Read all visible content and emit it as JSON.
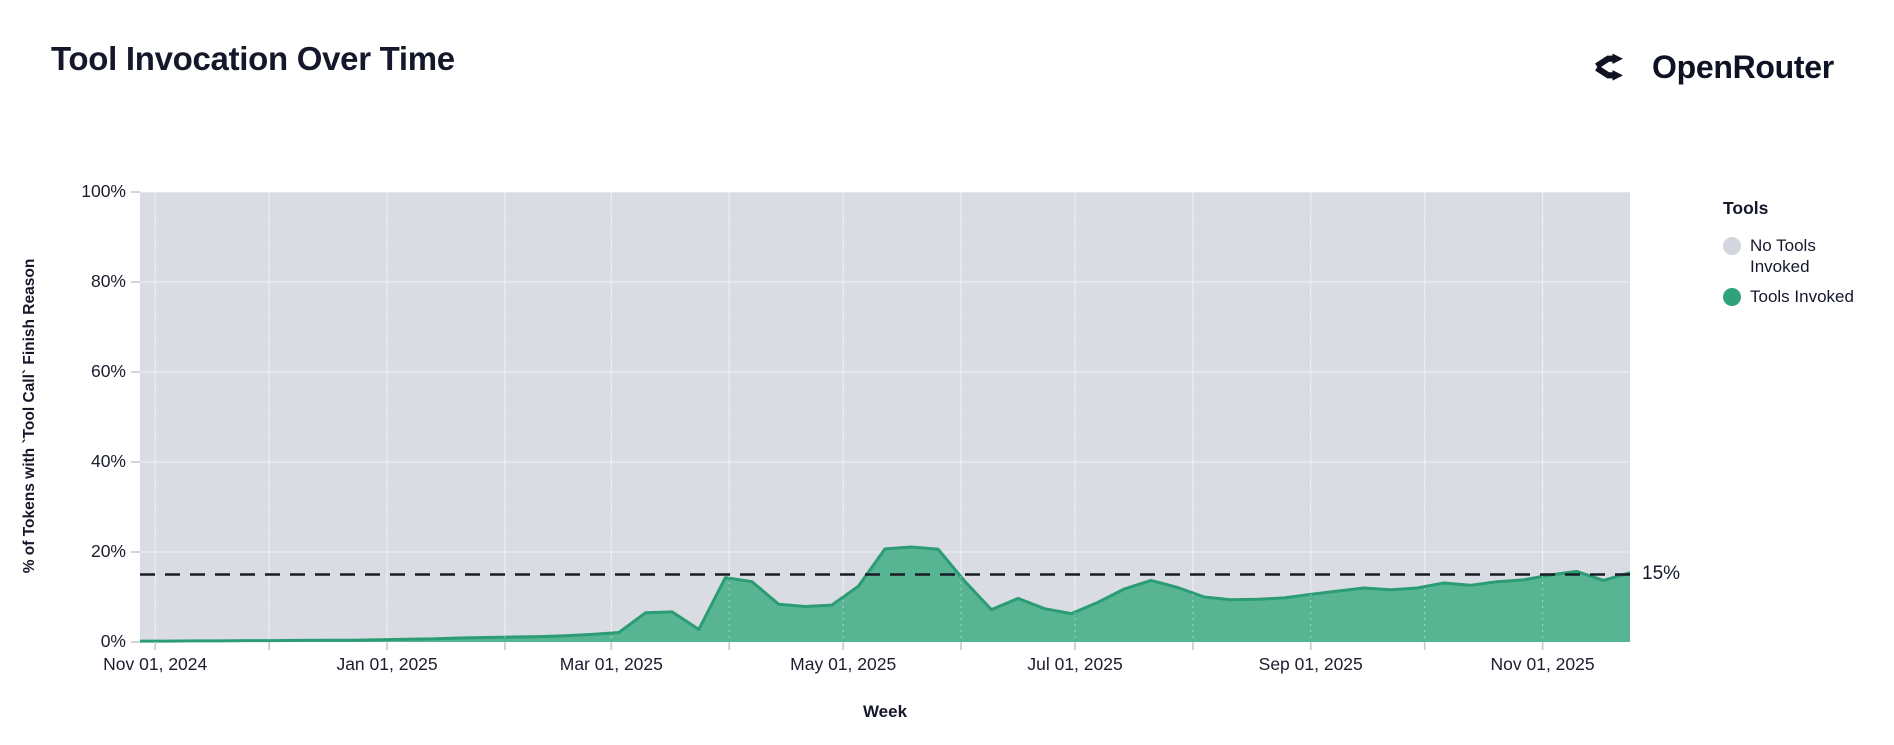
{
  "page": {
    "title": "Tool Invocation Over Time",
    "brand": "OpenRouter"
  },
  "legend": {
    "title": "Tools",
    "items": [
      {
        "label": "No Tools Invoked",
        "color": "#d4d6de"
      },
      {
        "label": "Tools Invoked",
        "color": "#2fa17c"
      }
    ]
  },
  "annotation": {
    "label": "15%"
  },
  "colors": {
    "plot_background_no_tools": "#d9dce3",
    "tools_fill": "#58b593",
    "tools_stroke": "#2b9c74",
    "reference_line": "#191c28",
    "text": "#14182a",
    "gridline": "rgba(255,255,255,0.5)",
    "tick_mark": "#c6c9d2"
  },
  "chart_data": {
    "type": "area",
    "title": "Tool Invocation Over Time",
    "xlabel": "Week",
    "ylabel": "% of Tokens with `Tool Call` Finish Reason",
    "stacked_to_100_percent": true,
    "ylim": [
      0,
      100
    ],
    "legend_position": "right",
    "grid": true,
    "y_ticks": [
      {
        "value": 0,
        "label": "0%"
      },
      {
        "value": 20,
        "label": "20%"
      },
      {
        "value": 40,
        "label": "40%"
      },
      {
        "value": 60,
        "label": "60%"
      },
      {
        "value": 80,
        "label": "80%"
      },
      {
        "value": 100,
        "label": "100%"
      }
    ],
    "x_ticks": [
      {
        "date": "2024-11-01",
        "label": "Nov 01, 2024"
      },
      {
        "date": "2024-12-01",
        "label": ""
      },
      {
        "date": "2025-01-01",
        "label": "Jan 01, 2025"
      },
      {
        "date": "2025-02-01",
        "label": ""
      },
      {
        "date": "2025-03-01",
        "label": "Mar 01, 2025"
      },
      {
        "date": "2025-04-01",
        "label": ""
      },
      {
        "date": "2025-05-01",
        "label": "May 01, 2025"
      },
      {
        "date": "2025-06-01",
        "label": ""
      },
      {
        "date": "2025-07-01",
        "label": "Jul 01, 2025"
      },
      {
        "date": "2025-08-01",
        "label": ""
      },
      {
        "date": "2025-09-01",
        "label": "Sep 01, 2025"
      },
      {
        "date": "2025-10-01",
        "label": ""
      },
      {
        "date": "2025-11-01",
        "label": "Nov 01, 2025"
      }
    ],
    "reference_line": {
      "value": 15,
      "label": "15%",
      "style": "dashed"
    },
    "series": [
      {
        "name": "No Tools Invoked",
        "role": "remainder to 100%",
        "color": "#d9dce3"
      },
      {
        "name": "Tools Invoked",
        "color": "#58b593",
        "stroke": "#2b9c74",
        "points": [
          [
            "2024-10-28",
            0.2
          ],
          [
            "2024-11-04",
            0.2
          ],
          [
            "2024-11-11",
            0.25
          ],
          [
            "2024-11-18",
            0.25
          ],
          [
            "2024-11-25",
            0.3
          ],
          [
            "2024-12-02",
            0.3
          ],
          [
            "2024-12-09",
            0.35
          ],
          [
            "2024-12-16",
            0.4
          ],
          [
            "2024-12-23",
            0.4
          ],
          [
            "2024-12-30",
            0.5
          ],
          [
            "2025-01-06",
            0.6
          ],
          [
            "2025-01-13",
            0.7
          ],
          [
            "2025-01-20",
            0.9
          ],
          [
            "2025-01-27",
            1.0
          ],
          [
            "2025-02-03",
            1.1
          ],
          [
            "2025-02-10",
            1.2
          ],
          [
            "2025-02-17",
            1.4
          ],
          [
            "2025-02-24",
            1.7
          ],
          [
            "2025-03-03",
            2.1
          ],
          [
            "2025-03-10",
            6.5
          ],
          [
            "2025-03-17",
            6.7
          ],
          [
            "2025-03-24",
            2.8
          ],
          [
            "2025-03-31",
            14.3
          ],
          [
            "2025-04-07",
            13.4
          ],
          [
            "2025-04-14",
            8.4
          ],
          [
            "2025-04-21",
            7.9
          ],
          [
            "2025-04-28",
            8.2
          ],
          [
            "2025-05-05",
            12.4
          ],
          [
            "2025-05-12",
            20.7
          ],
          [
            "2025-05-19",
            21.1
          ],
          [
            "2025-05-26",
            20.6
          ],
          [
            "2025-06-02",
            13.5
          ],
          [
            "2025-06-09",
            7.2
          ],
          [
            "2025-06-16",
            9.7
          ],
          [
            "2025-06-23",
            7.4
          ],
          [
            "2025-06-30",
            6.3
          ],
          [
            "2025-07-07",
            8.8
          ],
          [
            "2025-07-14",
            11.8
          ],
          [
            "2025-07-21",
            13.7
          ],
          [
            "2025-07-28",
            12.1
          ],
          [
            "2025-08-04",
            10.0
          ],
          [
            "2025-08-11",
            9.4
          ],
          [
            "2025-08-18",
            9.5
          ],
          [
            "2025-08-25",
            9.8
          ],
          [
            "2025-09-01",
            10.6
          ],
          [
            "2025-09-08",
            11.3
          ],
          [
            "2025-09-15",
            12.0
          ],
          [
            "2025-09-22",
            11.6
          ],
          [
            "2025-09-29",
            12.0
          ],
          [
            "2025-10-06",
            13.1
          ],
          [
            "2025-10-13",
            12.6
          ],
          [
            "2025-10-20",
            13.4
          ],
          [
            "2025-10-27",
            13.8
          ],
          [
            "2025-11-03",
            14.9
          ],
          [
            "2025-11-10",
            15.7
          ],
          [
            "2025-11-17",
            13.7
          ],
          [
            "2025-11-24",
            15.4
          ]
        ]
      }
    ]
  }
}
